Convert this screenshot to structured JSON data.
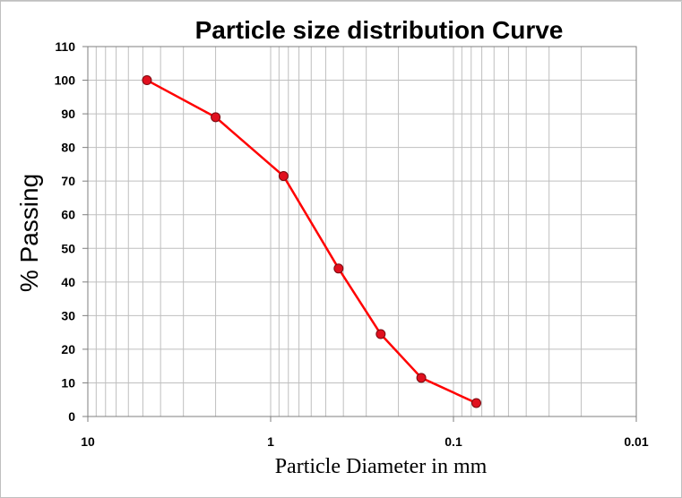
{
  "chart_data": {
    "type": "line",
    "title": "Particle size distribution Curve",
    "xlabel": "Particle Diameter in mm",
    "ylabel": "% Passing",
    "x_scale": "log",
    "x_reversed": true,
    "xlim": [
      10,
      0.01
    ],
    "ylim": [
      0,
      110
    ],
    "x_ticks": [
      "10",
      "1",
      "0.1",
      "0.01"
    ],
    "x_tick_values": [
      10,
      1,
      0.1,
      0.01
    ],
    "y_ticks": [
      "0",
      "10",
      "20",
      "30",
      "40",
      "50",
      "60",
      "70",
      "80",
      "90",
      "100",
      "110"
    ],
    "y_tick_values": [
      0,
      10,
      20,
      30,
      40,
      50,
      60,
      70,
      80,
      90,
      100,
      110
    ],
    "grid": true,
    "legend": "none",
    "series": [
      {
        "x": [
          4.75,
          2.0,
          0.85,
          0.425,
          0.25,
          0.15,
          0.075
        ],
        "y": [
          100,
          89,
          71.5,
          44,
          24.5,
          11.5,
          4
        ],
        "line_color": "#ff0000",
        "marker_color": "#e0101e"
      }
    ]
  }
}
